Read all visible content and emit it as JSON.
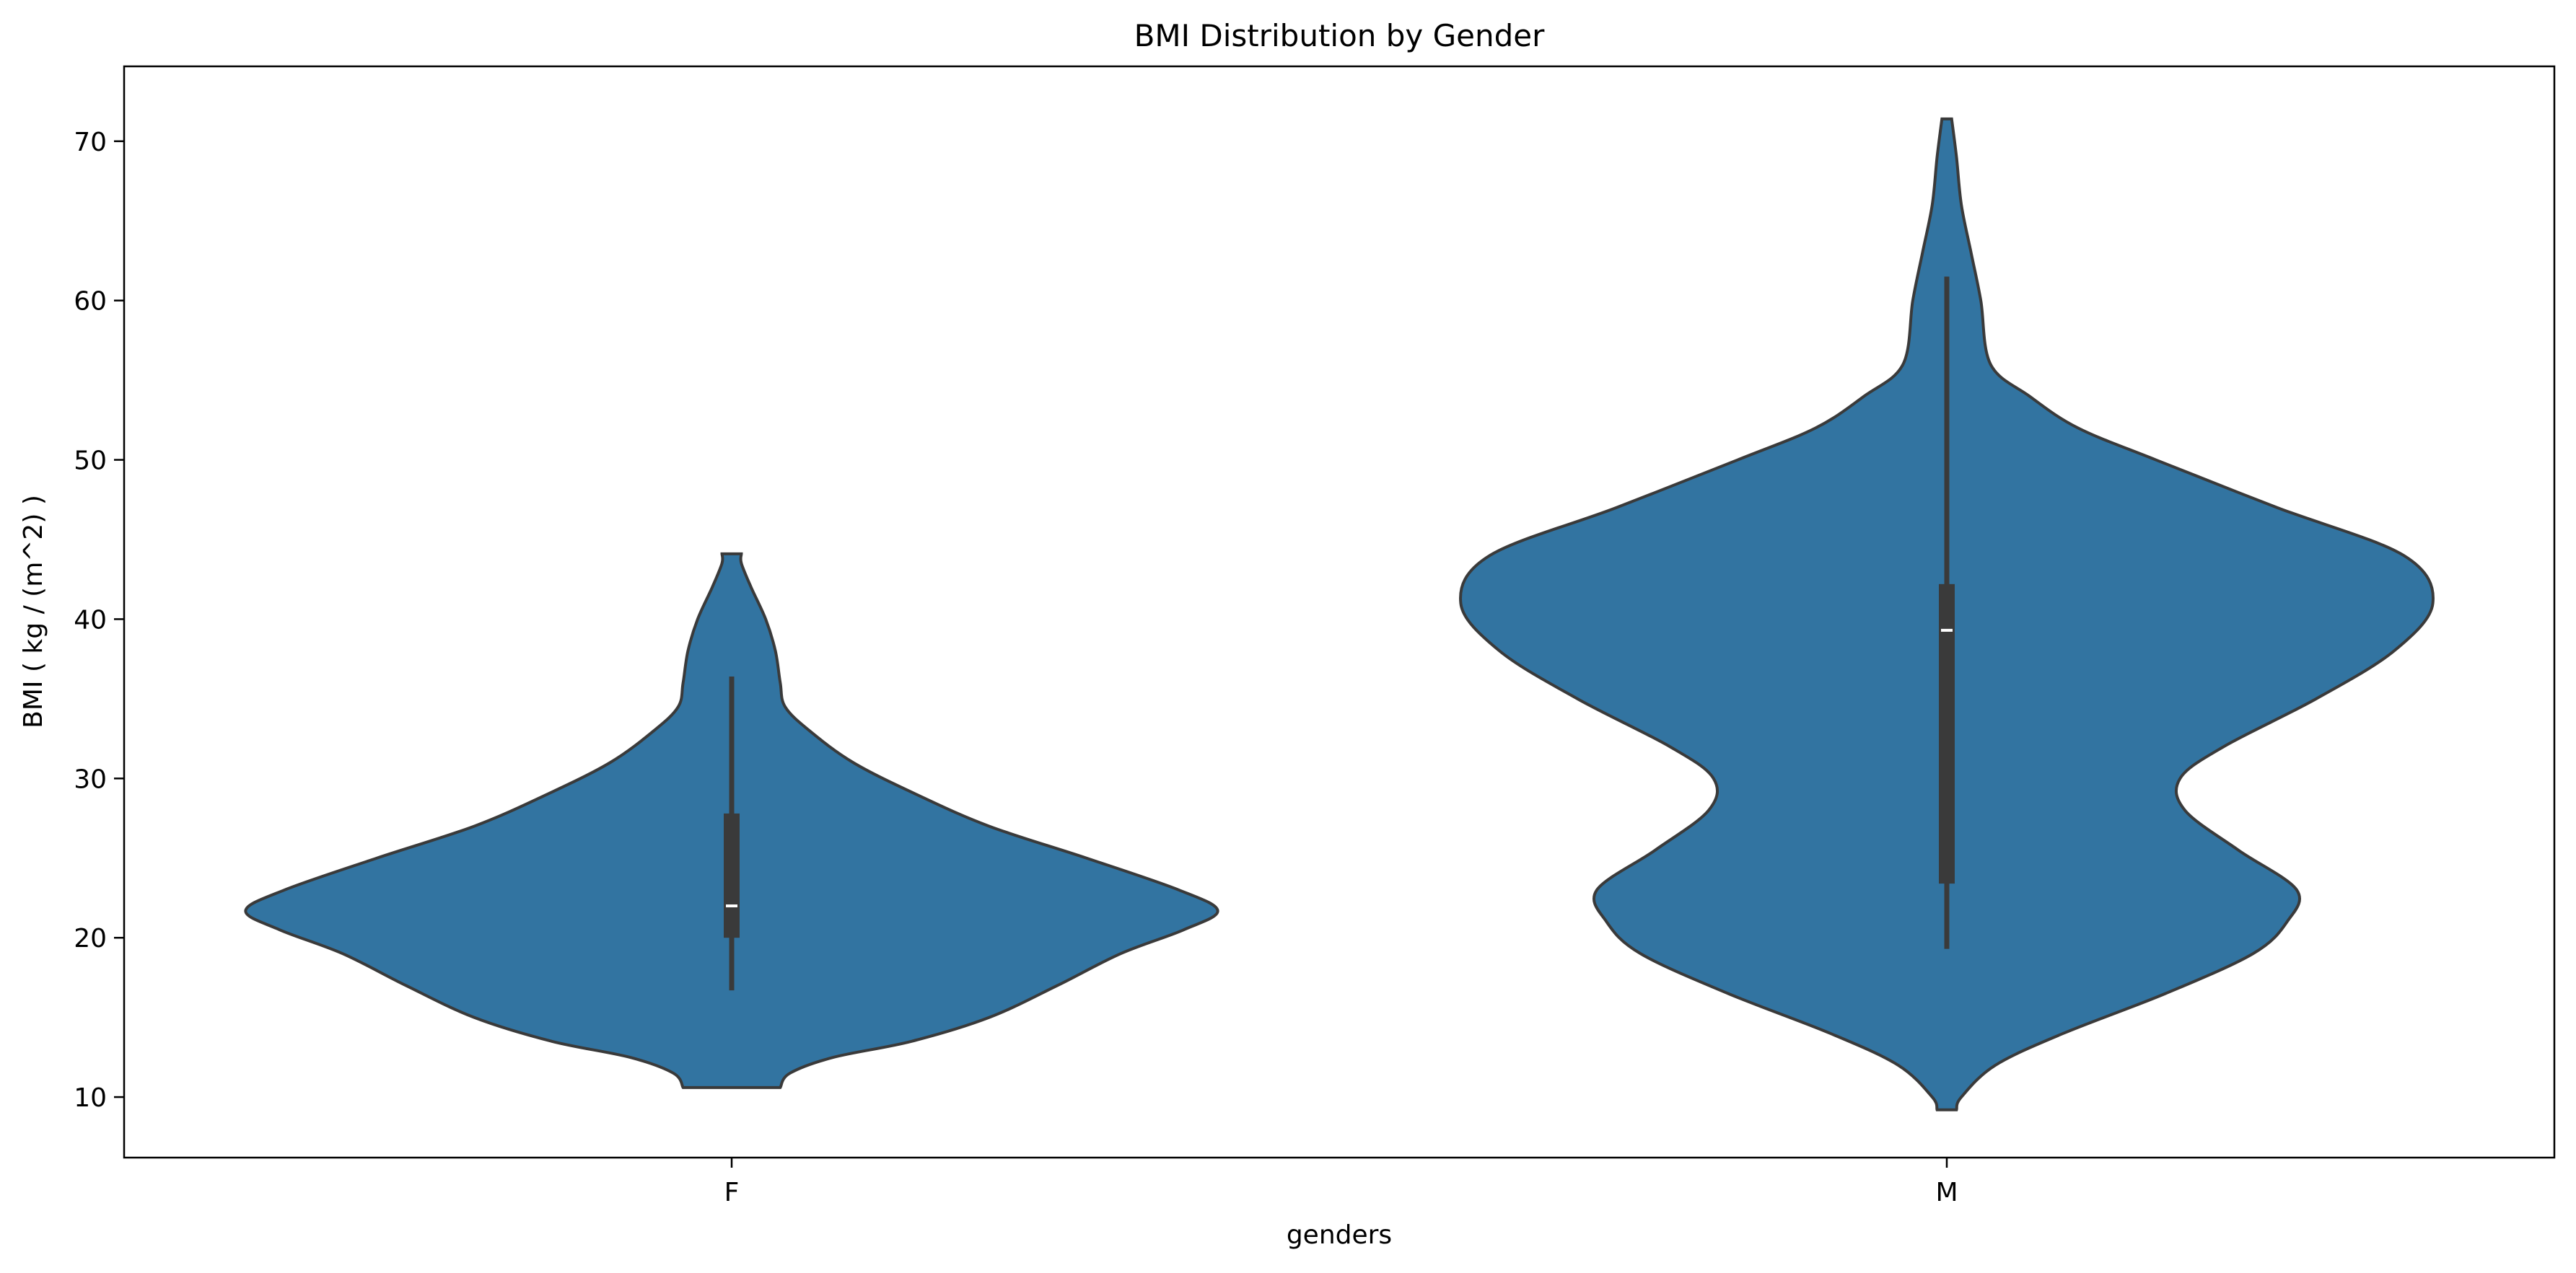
{
  "chart_data": {
    "type": "violin",
    "title": "BMI Distribution by Gender",
    "xlabel": "genders",
    "ylabel": "BMI ( kg / (m^2) )",
    "ylim": [
      6.2,
      74.7
    ],
    "yticks": [
      10,
      20,
      30,
      40,
      50,
      60,
      70
    ],
    "grid": false,
    "legend": "none",
    "colors": {
      "fill": "#3274a1",
      "edge": "#3a3a3a",
      "median": "#ffffff"
    },
    "categories": [
      "F",
      "M"
    ],
    "violins": [
      {
        "category": "F",
        "min": 16.7,
        "q1": 20.0,
        "median": 22.0,
        "q3": 27.8,
        "max": 36.4,
        "density": [
          [
            10.6,
            0.1
          ],
          [
            11.5,
            0.12
          ],
          [
            12.5,
            0.21
          ],
          [
            13.5,
            0.37
          ],
          [
            15.0,
            0.53
          ],
          [
            17.0,
            0.67
          ],
          [
            19.0,
            0.8
          ],
          [
            20.5,
            0.93
          ],
          [
            21.7,
            1.0
          ],
          [
            23.0,
            0.92
          ],
          [
            25.0,
            0.73
          ],
          [
            27.0,
            0.53
          ],
          [
            29.0,
            0.38
          ],
          [
            31.0,
            0.25
          ],
          [
            33.0,
            0.16
          ],
          [
            34.5,
            0.11
          ],
          [
            36.0,
            0.1
          ],
          [
            38.0,
            0.09
          ],
          [
            40.0,
            0.07
          ],
          [
            42.0,
            0.04
          ],
          [
            43.5,
            0.02
          ],
          [
            44.1,
            0.02
          ]
        ]
      },
      {
        "category": "M",
        "min": 19.3,
        "q1": 23.4,
        "median": 39.3,
        "q3": 42.2,
        "max": 61.5,
        "density": [
          [
            9.2,
            0.02
          ],
          [
            10.0,
            0.03
          ],
          [
            12.0,
            0.1
          ],
          [
            14.0,
            0.24
          ],
          [
            16.5,
            0.45
          ],
          [
            19.0,
            0.63
          ],
          [
            21.0,
            0.7
          ],
          [
            23.0,
            0.72
          ],
          [
            25.5,
            0.6
          ],
          [
            28.0,
            0.49
          ],
          [
            30.0,
            0.48
          ],
          [
            32.0,
            0.57
          ],
          [
            35.0,
            0.76
          ],
          [
            38.0,
            0.92
          ],
          [
            41.0,
            1.0
          ],
          [
            44.0,
            0.94
          ],
          [
            47.0,
            0.68
          ],
          [
            50.0,
            0.43
          ],
          [
            52.0,
            0.27
          ],
          [
            54.0,
            0.17
          ],
          [
            56.0,
            0.09
          ],
          [
            60.0,
            0.07
          ],
          [
            63.0,
            0.05
          ],
          [
            66.0,
            0.03
          ],
          [
            69.0,
            0.02
          ],
          [
            71.4,
            0.01
          ]
        ]
      }
    ]
  }
}
